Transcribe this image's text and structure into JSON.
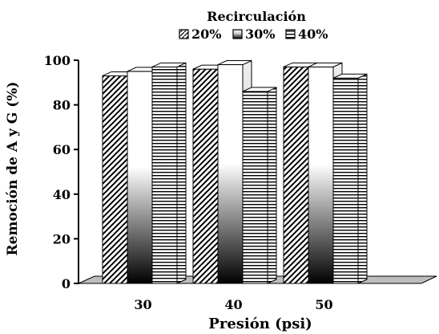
{
  "chart_data": {
    "type": "bar",
    "title": "Recirculación",
    "xlabel": "Presión (psi)",
    "ylabel": "Remoción de A y G (%)",
    "categories": [
      "30",
      "40",
      "50"
    ],
    "ylim": [
      0,
      100
    ],
    "yticks": [
      0,
      20,
      40,
      60,
      80,
      100
    ],
    "series": [
      {
        "name": "20%",
        "values": [
          93,
          96,
          97
        ]
      },
      {
        "name": "30%",
        "values": [
          95,
          98,
          97
        ]
      },
      {
        "name": "40%",
        "values": [
          97,
          86,
          92
        ]
      }
    ],
    "legend_position": "top",
    "grid": false,
    "style": "3d-bars",
    "series_patterns": [
      "diagonal-hatch",
      "white-to-black-gradient",
      "horizontal-lines"
    ]
  }
}
